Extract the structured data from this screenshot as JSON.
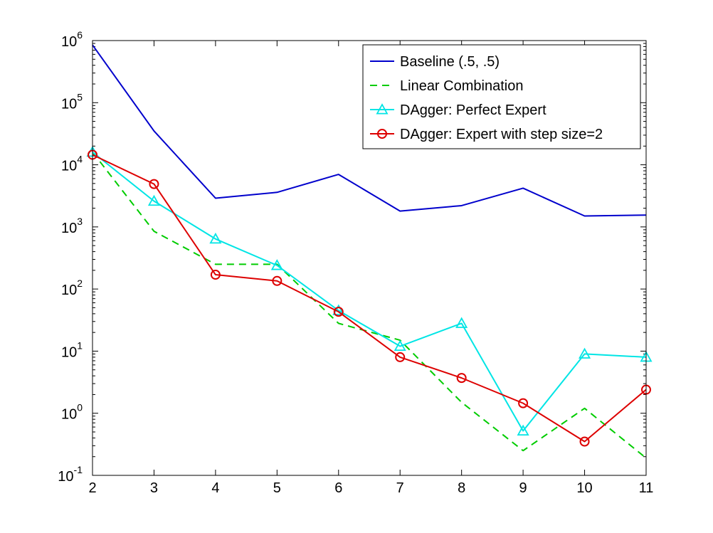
{
  "chart_data": {
    "type": "line",
    "title": "",
    "xlabel": "",
    "ylabel": "",
    "xlim": [
      2,
      11
    ],
    "ylim": [
      0.1,
      1000000
    ],
    "yscale": "log",
    "grid": false,
    "legend_position": "top-right",
    "x": [
      2,
      3,
      4,
      5,
      6,
      7,
      8,
      9,
      10,
      11
    ],
    "x_ticks": [
      "2",
      "3",
      "4",
      "5",
      "6",
      "7",
      "8",
      "9",
      "10",
      "11"
    ],
    "y_ticks": [
      {
        "base": "10",
        "exp": "-1"
      },
      {
        "base": "10",
        "exp": "0"
      },
      {
        "base": "10",
        "exp": "1"
      },
      {
        "base": "10",
        "exp": "2"
      },
      {
        "base": "10",
        "exp": "3"
      },
      {
        "base": "10",
        "exp": "4"
      },
      {
        "base": "10",
        "exp": "5"
      },
      {
        "base": "10",
        "exp": "6"
      }
    ],
    "series": [
      {
        "name": "Baseline (.5, .5)",
        "color": "#0000cc",
        "style": "solid",
        "marker": "none",
        "values": [
          850000,
          35000,
          2900,
          3600,
          7000,
          1800,
          2200,
          4200,
          1500,
          1550
        ]
      },
      {
        "name": "Linear Combination",
        "color": "#00cc00",
        "style": "dashed",
        "marker": "none",
        "values": [
          16000,
          850,
          250,
          250,
          28,
          15,
          1.5,
          0.25,
          1.2,
          0.19
        ]
      },
      {
        "name": "DAgger: Perfect Expert",
        "color": "#00e5e5",
        "style": "solid",
        "marker": "triangle",
        "values": [
          16000,
          2600,
          640,
          240,
          45,
          12,
          28,
          0.52,
          9,
          8
        ]
      },
      {
        "name": "DAgger: Expert with step size=2",
        "color": "#dd0000",
        "style": "solid",
        "marker": "circle",
        "values": [
          14500,
          4900,
          170,
          135,
          43,
          8,
          3.7,
          1.45,
          0.35,
          2.4
        ]
      }
    ]
  }
}
